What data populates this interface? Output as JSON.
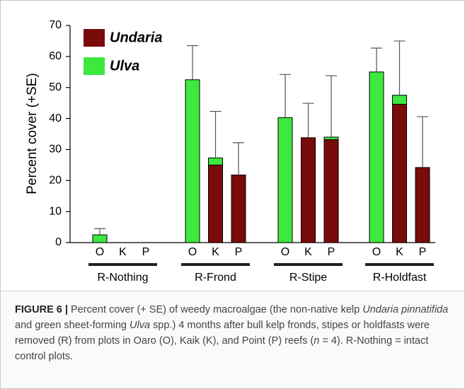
{
  "chart_data": {
    "type": "bar",
    "y_label": "Percent cover (+SE)",
    "categories": [
      "O",
      "K",
      "P",
      "O",
      "K",
      "P",
      "O",
      "K",
      "P",
      "O",
      "K",
      "P"
    ],
    "groups": [
      "R-Nothing",
      "R-Frond",
      "R-Stipe",
      "R-Holdfast"
    ],
    "series": [
      {
        "name": "Undaria",
        "color": "#7a0b0b",
        "values": [
          0,
          0,
          0,
          0,
          25,
          21.8,
          0,
          33.8,
          33.2,
          0,
          44.6,
          24.2
        ]
      },
      {
        "name": "Ulva",
        "color": "#3ee83e",
        "values": [
          2.5,
          0,
          0,
          52.5,
          2.3,
          0,
          40.3,
          0,
          0.8,
          55,
          2.9,
          0
        ]
      }
    ],
    "errors": [
      2.0,
      0,
      0,
      11,
      15,
      10.4,
      13.9,
      11.1,
      19.8,
      7.7,
      17.5,
      16.4
    ],
    "ylim": [
      0,
      70
    ],
    "yticks": [
      0,
      10,
      20,
      30,
      40,
      50,
      60,
      70
    ],
    "stacked": true,
    "legend": "top-left"
  },
  "caption": [
    "FIGURE 6 |",
    " Percent cover (+ SE) of weedy macroalgae (the non-native kelp ",
    "Undaria pinnatifida",
    " and green sheet-forming ",
    "Ulva",
    " spp.) 4 months after bull kelp fronds, stipes or holdfasts were removed (R) from plots in Oaro (O), Kaik (K), and Point (P) reefs (",
    "n",
    " = 4). R-Nothing = intact control plots."
  ]
}
